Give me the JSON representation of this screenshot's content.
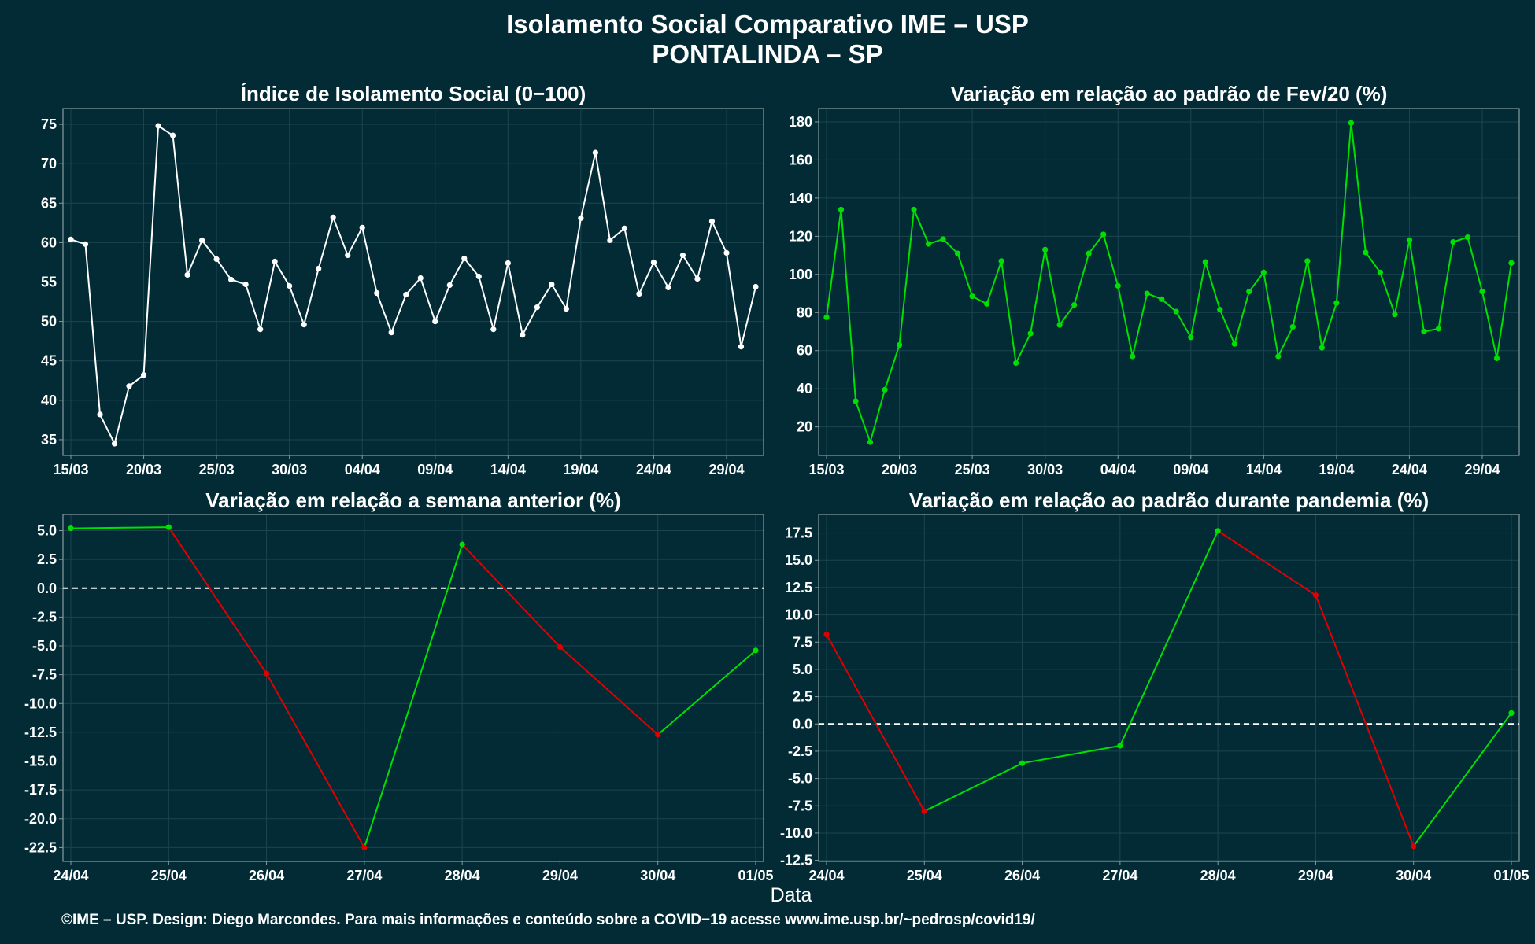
{
  "header": {
    "title_line1": "Isolamento Social Comparativo IME – USP",
    "title_line2": "PONTALINDA – SP"
  },
  "footer": {
    "xlabel": "Data",
    "credit": "©IME – USP. Design: Diego Marcondes. Para mais informações e conteúdo sobre a COVID−19 acesse www.ime.usp.br/~pedrosp/covid19/"
  },
  "colors": {
    "background": "#022b36",
    "grid": "#1c4550",
    "white": "#ffffff",
    "green": "#00e000",
    "red": "#e00000"
  },
  "chart_data": [
    {
      "type": "line",
      "title": "Índice de Isolamento Social (0−100)",
      "xlabel": "",
      "ylabel": "",
      "x": [
        "15/03",
        "16/03",
        "17/03",
        "18/03",
        "19/03",
        "20/03",
        "21/03",
        "22/03",
        "23/03",
        "24/03",
        "25/03",
        "26/03",
        "27/03",
        "28/03",
        "29/03",
        "30/03",
        "31/03",
        "01/04",
        "02/04",
        "03/04",
        "04/04",
        "05/04",
        "06/04",
        "07/04",
        "08/04",
        "09/04",
        "10/04",
        "11/04",
        "12/04",
        "13/04",
        "14/04",
        "15/04",
        "16/04",
        "17/04",
        "18/04",
        "19/04",
        "20/04",
        "21/04",
        "22/04",
        "23/04",
        "24/04",
        "25/04",
        "26/04",
        "27/04",
        "28/04",
        "29/04",
        "30/04",
        "01/05"
      ],
      "xticks": [
        "15/03",
        "20/03",
        "25/03",
        "30/03",
        "04/04",
        "09/04",
        "14/04",
        "19/04",
        "24/04",
        "29/04"
      ],
      "series": [
        {
          "color": "white",
          "values": [
            60.4,
            59.8,
            38.2,
            34.5,
            41.8,
            43.2,
            74.8,
            73.6,
            55.9,
            60.3,
            57.9,
            55.3,
            54.7,
            49.0,
            57.6,
            54.5,
            49.6,
            56.7,
            63.2,
            58.4,
            61.9,
            53.6,
            48.6,
            53.4,
            55.5,
            50.0,
            54.6,
            58.0,
            55.7,
            49.0,
            57.4,
            48.3,
            51.8,
            54.7,
            51.6,
            63.1,
            71.4,
            60.3,
            61.8,
            53.5,
            57.5,
            54.3,
            58.4,
            55.4,
            62.7,
            58.7,
            46.8,
            54.4
          ]
        }
      ],
      "ylim": [
        33,
        77
      ],
      "yticks": [
        35,
        40,
        45,
        50,
        55,
        60,
        65,
        70,
        75
      ],
      "hline": null
    },
    {
      "type": "line",
      "title": "Variação em relação ao padrão de Fev/20 (%)",
      "xlabel": "",
      "ylabel": "",
      "x": [
        "15/03",
        "16/03",
        "17/03",
        "18/03",
        "19/03",
        "20/03",
        "21/03",
        "22/03",
        "23/03",
        "24/03",
        "25/03",
        "26/03",
        "27/03",
        "28/03",
        "29/03",
        "30/03",
        "31/03",
        "01/04",
        "02/04",
        "03/04",
        "04/04",
        "05/04",
        "06/04",
        "07/04",
        "08/04",
        "09/04",
        "10/04",
        "11/04",
        "12/04",
        "13/04",
        "14/04",
        "15/04",
        "16/04",
        "17/04",
        "18/04",
        "19/04",
        "20/04",
        "21/04",
        "22/04",
        "23/04",
        "24/04",
        "25/04",
        "26/04",
        "27/04",
        "28/04",
        "29/04",
        "30/04",
        "01/05"
      ],
      "xticks": [
        "15/03",
        "20/03",
        "25/03",
        "30/03",
        "04/04",
        "09/04",
        "14/04",
        "19/04",
        "24/04",
        "29/04"
      ],
      "series": [
        {
          "color": "green",
          "values": [
            77.5,
            134.0,
            33.5,
            12.0,
            39.5,
            63.0,
            134.0,
            116.0,
            118.5,
            111.0,
            88.5,
            84.5,
            107.0,
            53.5,
            69.0,
            113.0,
            73.5,
            84.0,
            111.0,
            121.0,
            94.0,
            57.0,
            90.0,
            87.0,
            80.5,
            67.0,
            106.5,
            81.5,
            63.5,
            91.0,
            101.0,
            57.0,
            72.5,
            107.0,
            61.5,
            85.0,
            179.5,
            111.5,
            101.0,
            79.0,
            118.0,
            70.0,
            71.5,
            117.0,
            119.5,
            91.0,
            56.0,
            106.0
          ]
        }
      ],
      "ylim": [
        5,
        187
      ],
      "yticks": [
        20,
        40,
        60,
        80,
        100,
        120,
        140,
        160,
        180
      ],
      "hline": null
    },
    {
      "type": "line",
      "title": "Variação em relação a semana anterior (%)",
      "xlabel": "",
      "ylabel": "",
      "x": [
        "24/04",
        "25/04",
        "26/04",
        "27/04",
        "28/04",
        "29/04",
        "30/04",
        "01/05"
      ],
      "xticks": [
        "24/04",
        "25/04",
        "26/04",
        "27/04",
        "28/04",
        "29/04",
        "30/04",
        "01/05"
      ],
      "series": [
        {
          "color": "green/red by direction",
          "values": [
            5.2,
            5.3,
            -7.4,
            -22.5,
            3.8,
            -5.1,
            -12.7,
            -5.4
          ]
        }
      ],
      "ylim": [
        -23.7,
        6.4
      ],
      "yticks": [
        5.0,
        2.5,
        0.0,
        -2.5,
        -5.0,
        -7.5,
        -10.0,
        -12.5,
        -15.0,
        -17.5,
        -20.0,
        -22.5
      ],
      "hline": 0
    },
    {
      "type": "line",
      "title": "Variação em relação ao padrão durante pandemia (%)",
      "xlabel": "",
      "ylabel": "",
      "x": [
        "24/04",
        "25/04",
        "26/04",
        "27/04",
        "28/04",
        "29/04",
        "30/04",
        "01/05"
      ],
      "xticks": [
        "24/04",
        "25/04",
        "26/04",
        "27/04",
        "28/04",
        "29/04",
        "30/04",
        "01/05"
      ],
      "series": [
        {
          "color": "green/red by direction",
          "values": [
            8.2,
            -8.0,
            -3.6,
            -2.0,
            17.7,
            11.8,
            -11.2,
            1.0
          ]
        }
      ],
      "ylim": [
        -12.6,
        19.2
      ],
      "yticks": [
        17.5,
        15.0,
        12.5,
        10.0,
        7.5,
        5.0,
        2.5,
        0.0,
        -2.5,
        -5.0,
        -7.5,
        -10.0,
        -12.5
      ],
      "hline": 0
    }
  ]
}
